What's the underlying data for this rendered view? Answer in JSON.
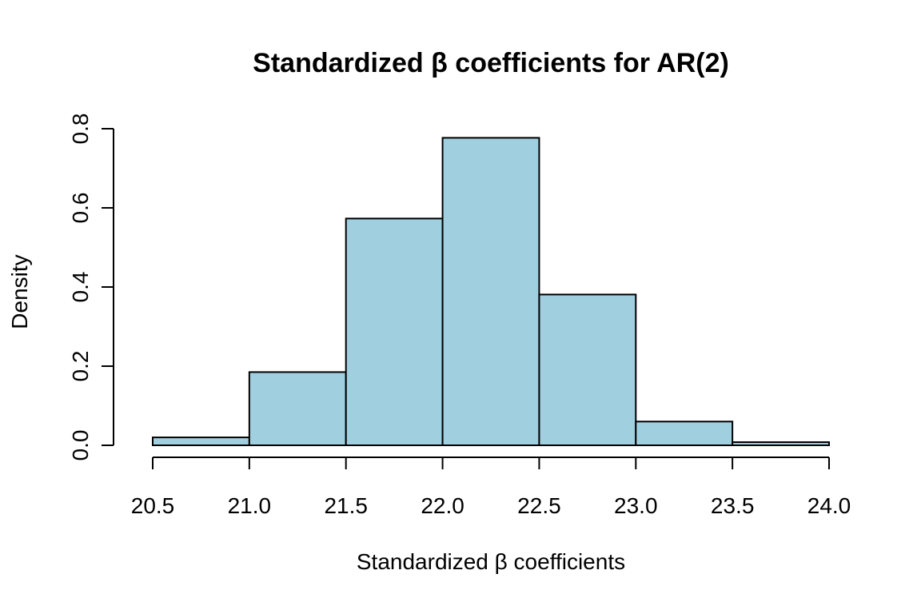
{
  "chart_data": {
    "type": "bar",
    "subtype": "histogram",
    "title": "Standardized β coefficients for AR(2)",
    "xlabel": "Standardized β coefficients",
    "ylabel": "Density",
    "bins": [
      {
        "start": 20.5,
        "end": 21.0,
        "density": 0.02
      },
      {
        "start": 21.0,
        "end": 21.5,
        "density": 0.185
      },
      {
        "start": 21.5,
        "end": 22.0,
        "density": 0.573
      },
      {
        "start": 22.0,
        "end": 22.5,
        "density": 0.777
      },
      {
        "start": 22.5,
        "end": 23.0,
        "density": 0.381
      },
      {
        "start": 23.0,
        "end": 23.5,
        "density": 0.06
      },
      {
        "start": 23.5,
        "end": 24.0,
        "density": 0.008
      }
    ],
    "xlim": [
      20.5,
      24.0
    ],
    "ylim": [
      0,
      0.8
    ],
    "xticks": [
      "20.5",
      "21.0",
      "21.5",
      "22.0",
      "22.5",
      "23.0",
      "23.5",
      "24.0"
    ],
    "yticks": [
      "0.0",
      "0.2",
      "0.4",
      "0.6",
      "0.8"
    ],
    "bar_color": "#a0cfe0",
    "grid": false
  }
}
